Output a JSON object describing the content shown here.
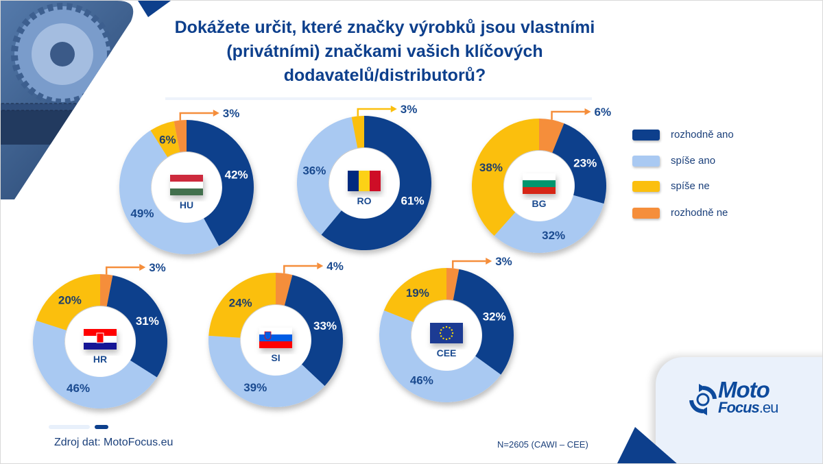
{
  "title": "Dokážete určit, které značky výrobků jsou vlastními (privátními) značkami vašich klíčových dodavatelů/distributorů?",
  "title_lines": [
    "Dokážete určit, které značky výrobků jsou vlastními",
    "(privátními) značkami vašich klíčových",
    "dodavatelů/distributorů?"
  ],
  "colors": {
    "rozhodne_ano": "#0d3f8c",
    "spise_ano": "#a9c9f2",
    "spise_ne": "#fbbf0e",
    "rozhodne_ne": "#f58e3b",
    "text_dark": "#1a3f7a",
    "brand": "#0d4a9c"
  },
  "legend": [
    {
      "key": "rozhodne_ano",
      "label": "rozhodně ano",
      "color": "#0d3f8c"
    },
    {
      "key": "spise_ano",
      "label": "spíše ano",
      "color": "#a9c9f2"
    },
    {
      "key": "spise_ne",
      "label": "spíše ne",
      "color": "#fbbf0e"
    },
    {
      "key": "rozhodne_ne",
      "label": "rozhodně ne",
      "color": "#f58e3b"
    }
  ],
  "chart_data": {
    "type": "pie",
    "subtype": "donut",
    "title": "Dokážete určit, které značky výrobků jsou vlastními (privátními) značkami vašich klíčových dodavatelů/distributorů?",
    "categories": [
      "rozhodně ano",
      "spíše ano",
      "spíše ne",
      "rozhodně ne"
    ],
    "legend_position": "right",
    "unit": "%",
    "series": [
      {
        "name": "HU",
        "flag": "hungary-flag",
        "values": [
          42,
          49,
          6,
          3
        ],
        "callout": "3%",
        "callout_category": "rozhodně ne"
      },
      {
        "name": "RO",
        "flag": "romania-flag",
        "values": [
          61,
          36,
          3,
          0
        ],
        "callout": "3%",
        "callout_category": "spíše ne"
      },
      {
        "name": "BG",
        "flag": "bulgaria-flag",
        "values": [
          23,
          32,
          38,
          6
        ],
        "callout": "6%",
        "callout_category": "rozhodně ne"
      },
      {
        "name": "HR",
        "flag": "croatia-flag",
        "values": [
          31,
          46,
          20,
          3
        ],
        "callout": "3%",
        "callout_category": "rozhodně ne"
      },
      {
        "name": "SI",
        "flag": "slovenia-flag",
        "values": [
          33,
          39,
          24,
          4
        ],
        "callout": "4%",
        "callout_category": "rozhodně ne"
      },
      {
        "name": "CEE",
        "flag": "eu-flag",
        "values": [
          32,
          46,
          19,
          3
        ],
        "callout": "3%",
        "callout_category": "rozhodně ne"
      }
    ]
  },
  "footer": {
    "source": "Zdroj dat: MotoFocus.eu",
    "sample": "N=2605 (CAWI – CEE)"
  },
  "logo": {
    "line1": "Moto",
    "line2": "Focus",
    "suffix": ".eu"
  }
}
